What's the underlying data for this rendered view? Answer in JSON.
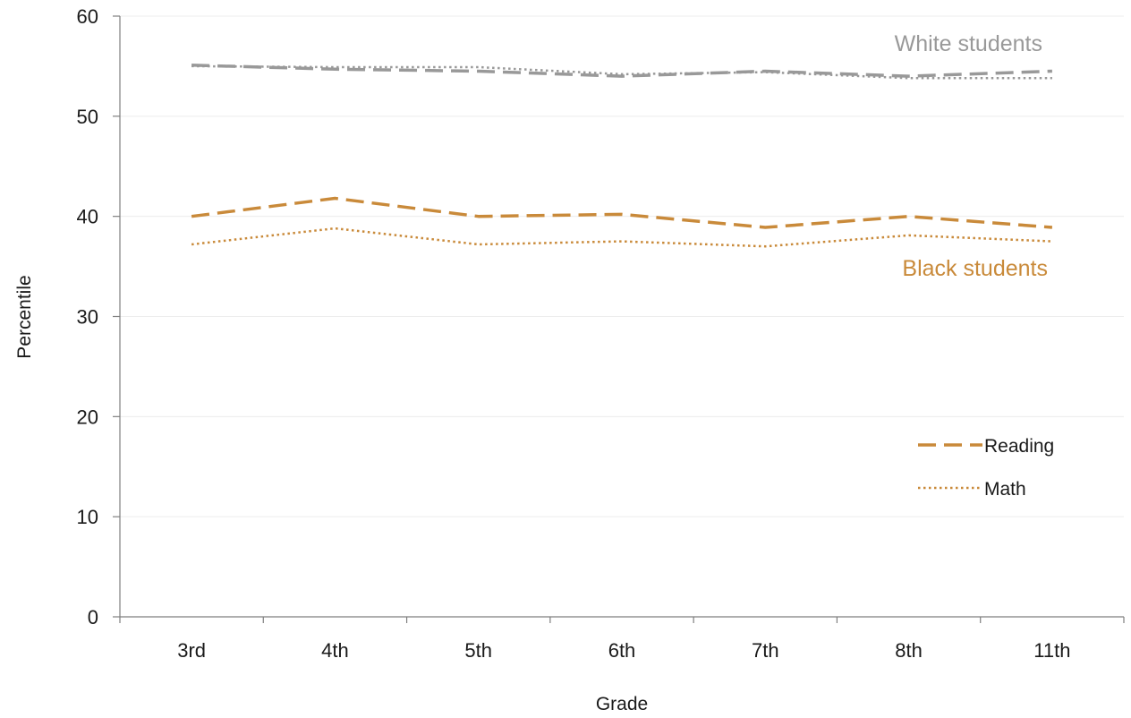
{
  "chart_data": {
    "type": "line",
    "categories": [
      "3rd",
      "4th",
      "5th",
      "6th",
      "7th",
      "8th",
      "11th"
    ],
    "ylim": [
      0,
      60
    ],
    "yticks": [
      0,
      10,
      20,
      30,
      40,
      50,
      60
    ],
    "xlabel": "Grade",
    "ylabel": "Percentile",
    "grid": true,
    "legend_position": "right",
    "legend": [
      {
        "label": "Reading",
        "style": "dashed"
      },
      {
        "label": "Math",
        "style": "dotted"
      }
    ],
    "groups": [
      {
        "label": "White students",
        "color": "#999999"
      },
      {
        "label": "Black students",
        "color": "#c98a3a"
      }
    ],
    "series": [
      {
        "group": 0,
        "measure": "Reading",
        "style": "dashed",
        "color": "#999999",
        "values": [
          55.1,
          54.7,
          54.5,
          54.0,
          54.5,
          54.0,
          54.5
        ]
      },
      {
        "group": 0,
        "measure": "Math",
        "style": "dotted",
        "color": "#999999",
        "values": [
          55.0,
          54.9,
          54.9,
          54.2,
          54.4,
          53.8,
          53.8
        ]
      },
      {
        "group": 1,
        "measure": "Reading",
        "style": "dashed",
        "color": "#c98a3a",
        "values": [
          40.0,
          41.8,
          40.0,
          40.2,
          38.9,
          40.0,
          38.9
        ]
      },
      {
        "group": 1,
        "measure": "Math",
        "style": "dotted",
        "color": "#c98a3a",
        "values": [
          37.2,
          38.8,
          37.2,
          37.5,
          37.0,
          38.1,
          37.5
        ]
      }
    ]
  }
}
